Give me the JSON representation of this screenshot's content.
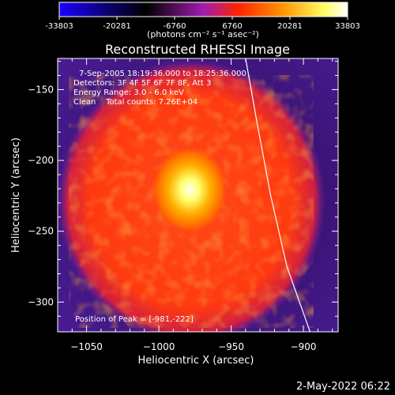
{
  "colorbar": {
    "tick_labels": [
      "-33803",
      "-20281",
      "-6760",
      "6760",
      "20281",
      "33803"
    ],
    "min": -33803,
    "max": 33803,
    "units": "(photons cm⁻² s⁻¹ asec⁻²)",
    "colors": [
      "#1a00ff",
      "#000000",
      "#a01cb0",
      "#ff2200",
      "#ff9900",
      "#ffff66",
      "#ffffff"
    ]
  },
  "chart_data": {
    "type": "heatmap",
    "title": "Reconstructed RHESSI Image",
    "xlabel": "Heliocentric X (arcsec)",
    "ylabel": "Heliocentric Y (arcsec)",
    "xlim": [
      -1070,
      -876
    ],
    "ylim": [
      -321,
      -128
    ],
    "x_ticks": [
      -1050,
      -1000,
      -950,
      -900
    ],
    "y_ticks": [
      -150,
      -200,
      -250,
      -300
    ],
    "x_tick_labels": [
      "−1050",
      "−1000",
      "−950",
      "−900"
    ],
    "y_tick_labels": [
      "−150",
      "−200",
      "−250",
      "−300"
    ],
    "peak": {
      "x": -981,
      "y": -222
    },
    "annotations": [
      "7-Sep-2005 18:19:36.000 to 18:25:36.000",
      "Detectors: 3F 4F 5F 6F 7F 8F, Att 3",
      "Energy Range: 3.0 - 6.0 keV",
      "Clean    Total counts: 7.26E+04"
    ],
    "peak_label": "Position of Peak = [-981,-222]",
    "limb_points": [
      [
        -940.0,
        -128
      ],
      [
        -931.8,
        -175
      ],
      [
        -922.6,
        -225
      ],
      [
        -911.4,
        -275
      ],
      [
        -895.4,
        -321
      ]
    ]
  },
  "footer": {
    "date": "2-May-2022 06:22"
  }
}
